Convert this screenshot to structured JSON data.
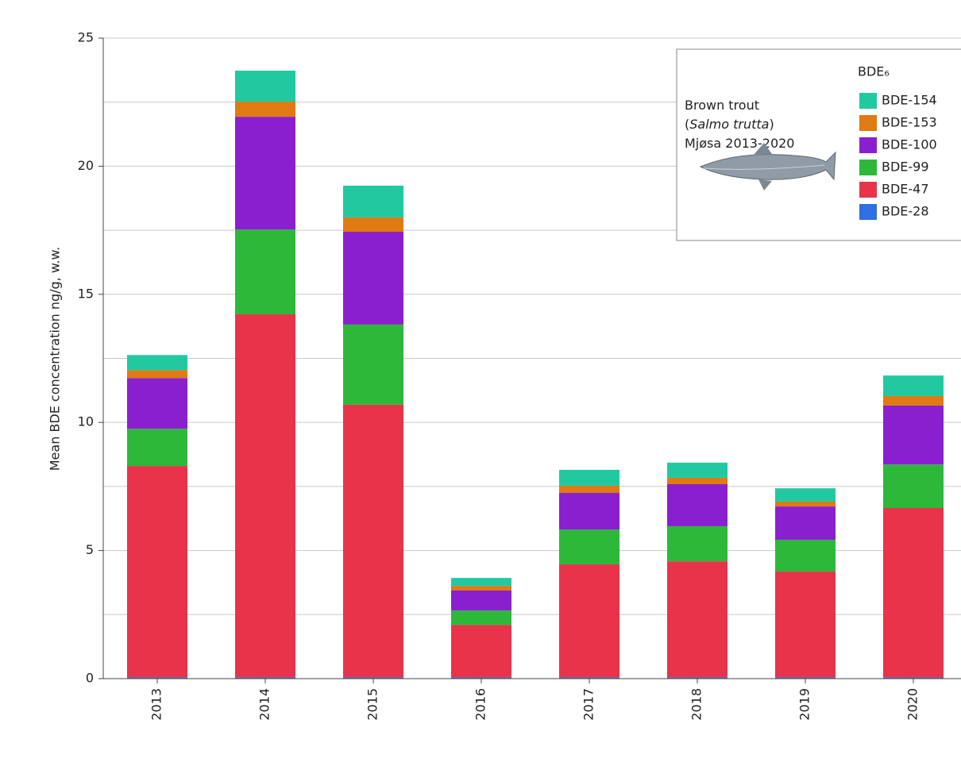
{
  "chart_data": {
    "type": "stacked_bar",
    "y_label": "Mean BDE concentration ng/g, w.w.",
    "categories": [
      "2013",
      "2014",
      "2015",
      "2016",
      "2017",
      "2018",
      "2019",
      "2020"
    ],
    "series": [
      {
        "name": "BDE-28",
        "color": "#2f6fe0",
        "values": [
          0.05,
          0.05,
          0.05,
          0.05,
          0.05,
          0.05,
          0.05,
          0.05
        ]
      },
      {
        "name": "BDE-47",
        "color": "#e8334a",
        "values": [
          8.25,
          14.17,
          10.64,
          2.05,
          4.41,
          4.53,
          4.13,
          6.61
        ]
      },
      {
        "name": "BDE-99",
        "color": "#2db83a",
        "values": [
          1.45,
          3.31,
          3.13,
          0.56,
          1.36,
          1.37,
          1.24,
          1.7
        ]
      },
      {
        "name": "BDE-100",
        "color": "#8a1fd0",
        "values": [
          1.98,
          4.4,
          3.62,
          0.78,
          1.43,
          1.64,
          1.3,
          2.3
        ]
      },
      {
        "name": "BDE-153",
        "color": "#e07a12",
        "values": [
          0.31,
          0.59,
          0.56,
          0.18,
          0.28,
          0.25,
          0.19,
          0.37
        ]
      },
      {
        "name": "BDE-154",
        "color": "#22c9a0",
        "values": [
          0.59,
          1.21,
          1.24,
          0.31,
          0.62,
          0.59,
          0.52,
          0.8
        ]
      }
    ],
    "ylim": [
      0,
      25
    ],
    "yticks": [
      0,
      5,
      10,
      15,
      20,
      25
    ],
    "yminor": [
      2.5,
      7.5,
      12.5,
      17.5,
      22.5
    ],
    "grid": true,
    "legend_title": "BDE₆",
    "annotation": [
      "Brown trout",
      [
        "(",
        "Salmo trutta",
        ")"
      ],
      "Mjøsa 2013-2020"
    ]
  }
}
